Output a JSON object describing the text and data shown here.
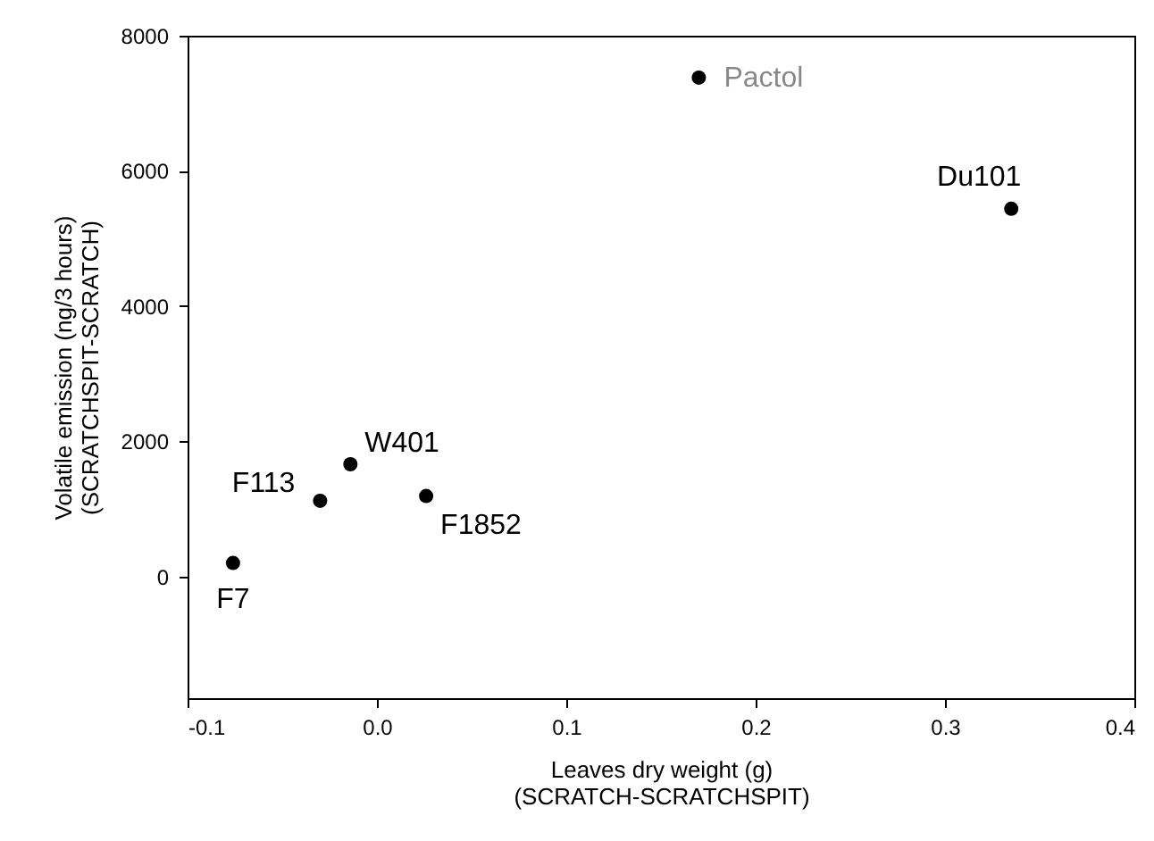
{
  "chart_data": {
    "type": "scatter",
    "xlabel": "Leaves dry weight (g)\n(SCRATCH-SCRATCHSPIT)",
    "ylabel": "Volatile emission (ng/3 hours)\n(SCRATCHSPIT-SCRATCH)",
    "x": [
      -0.076,
      -0.03,
      -0.014,
      0.026,
      0.17,
      0.335
    ],
    "series": [
      {
        "color": "#000000",
        "values": [
          200,
          1120,
          1660,
          1190,
          7380,
          5440
        ]
      }
    ],
    "marker": "circle",
    "xlim": [
      -0.1,
      0.4
    ],
    "xticks": [
      -0.1,
      {
        "value": 0,
        "label": "0.0"
      },
      0.1,
      0.2,
      0.3,
      0.4
    ],
    "ylim": [
      -1800,
      8000
    ],
    "yticks": [
      0,
      2000,
      4000,
      6000,
      8000
    ],
    "grid": false,
    "annotations": [
      {
        "text": "F7",
        "x": -0.076,
        "y": 200
      },
      {
        "text": "F113",
        "x": -0.03,
        "y": 1120
      },
      {
        "text": "W401",
        "x": -0.014,
        "y": 1660
      },
      {
        "text": "F1852",
        "x": 0.026,
        "y": 1190
      },
      {
        "text": "Pactol",
        "x": 0.17,
        "y": 7380
      },
      {
        "text": "Du101",
        "x": 0.335,
        "y": 5440
      }
    ]
  }
}
